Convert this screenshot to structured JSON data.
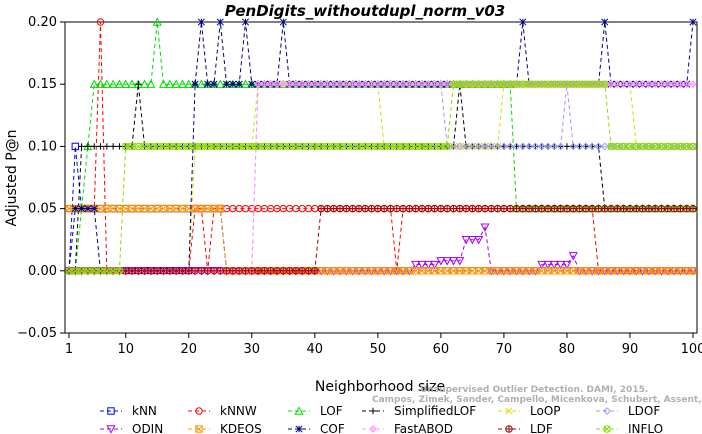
{
  "chart_data": {
    "type": "line",
    "title": "PenDigits_withoutdupl_norm_v03",
    "xlabel": "Neighborhood size",
    "ylabel": "Adjusted P@n",
    "xlim": [
      1,
      100
    ],
    "ylim": [
      -0.05,
      0.2
    ],
    "xticks": [
      "1",
      "10",
      "20",
      "30",
      "40",
      "50",
      "60",
      "70",
      "80",
      "90",
      "100"
    ],
    "yticks": [
      "−0.05",
      "0.00",
      "0.05",
      "0.10",
      "0.15",
      "0.20"
    ],
    "grid": false,
    "legend_position": "bottom",
    "watermark": "Campos, Zimek, Sander, Campello, Micenkova, Schubert, Assent, Houle",
    "watermark_line1": "Unsupervised Outlier Detection. DAMI, 2015.",
    "series": [
      {
        "name": "kNN",
        "color": "#0000ff",
        "marker": "square",
        "points": [
          [
            1,
            0
          ],
          [
            2,
            0.1
          ],
          [
            3,
            0.05
          ],
          [
            10,
            0.05
          ],
          [
            25,
            0.05
          ],
          [
            26,
            0
          ],
          [
            100,
            0
          ]
        ]
      },
      {
        "name": "kNNW",
        "color": "#ff0000",
        "marker": "circle",
        "points": [
          [
            1,
            0.05
          ],
          [
            5,
            0.05
          ],
          [
            6,
            0.2
          ],
          [
            7,
            0
          ],
          [
            20,
            0
          ],
          [
            21,
            0.05
          ],
          [
            23,
            0
          ],
          [
            24,
            0.05
          ],
          [
            52,
            0.05
          ],
          [
            53,
            0
          ],
          [
            54,
            0.05
          ],
          [
            84,
            0.05
          ],
          [
            85,
            0
          ],
          [
            100,
            0
          ]
        ]
      },
      {
        "name": "LOF",
        "color": "#00dd00",
        "marker": "triangle-up",
        "points": [
          [
            1,
            0
          ],
          [
            2,
            0
          ],
          [
            3,
            0.05
          ],
          [
            4,
            0.1
          ],
          [
            5,
            0.15
          ],
          [
            14,
            0.15
          ],
          [
            15,
            0.2
          ],
          [
            16,
            0.15
          ],
          [
            70,
            0.15
          ],
          [
            72,
            0.05
          ],
          [
            100,
            0.05
          ]
        ]
      },
      {
        "name": "SimplifiedLOF",
        "color": "#000000",
        "marker": "plus",
        "points": [
          [
            1,
            0
          ],
          [
            3,
            0.1
          ],
          [
            10,
            0.1
          ],
          [
            12,
            0.15
          ],
          [
            13,
            0.1
          ],
          [
            40,
            0.1
          ],
          [
            60,
            0.1
          ],
          [
            63,
            0.15
          ],
          [
            64,
            0.1
          ],
          [
            85,
            0.1
          ],
          [
            86,
            0.05
          ],
          [
            100,
            0.05
          ]
        ]
      },
      {
        "name": "LoOP",
        "color": "#dddd00",
        "marker": "x",
        "points": [
          [
            1,
            0
          ],
          [
            20,
            0
          ],
          [
            21,
            0.1
          ],
          [
            30,
            0.1
          ],
          [
            31,
            0.15
          ],
          [
            50,
            0.15
          ],
          [
            51,
            0.1
          ],
          [
            70,
            0.15
          ],
          [
            90,
            0.15
          ],
          [
            91,
            0.1
          ],
          [
            100,
            0.1
          ]
        ]
      },
      {
        "name": "LDOF",
        "color": "#9999ff",
        "marker": "diamond",
        "points": [
          [
            1,
            0
          ],
          [
            30,
            0
          ],
          [
            31,
            0.15
          ],
          [
            60,
            0.15
          ],
          [
            61,
            0.1
          ],
          [
            80,
            0.15
          ],
          [
            81,
            0.1
          ],
          [
            100,
            0.1
          ]
        ]
      },
      {
        "name": "ODIN",
        "color": "#a000ff",
        "marker": "triangle-down",
        "points": [
          [
            1,
            0
          ],
          [
            55,
            0
          ],
          [
            56,
            0.005
          ],
          [
            60,
            0.008
          ],
          [
            64,
            0.025
          ],
          [
            67,
            0.035
          ],
          [
            68,
            0
          ],
          [
            75,
            0
          ],
          [
            76,
            0.005
          ],
          [
            81,
            0.012
          ],
          [
            82,
            0
          ],
          [
            100,
            0
          ]
        ]
      },
      {
        "name": "KDEOS",
        "color": "#ff9900",
        "marker": "square-x",
        "points": [
          [
            1,
            0.05
          ],
          [
            25,
            0.05
          ],
          [
            26,
            0
          ],
          [
            100,
            0
          ]
        ]
      },
      {
        "name": "COF",
        "color": "#000080",
        "marker": "star",
        "points": [
          [
            1,
            0
          ],
          [
            2,
            0.05
          ],
          [
            5,
            0.05
          ],
          [
            6,
            0
          ],
          [
            20,
            0
          ],
          [
            21,
            0.15
          ],
          [
            22,
            0.2
          ],
          [
            23,
            0.15
          ],
          [
            25,
            0.2
          ],
          [
            26,
            0.15
          ],
          [
            29,
            0.2
          ],
          [
            30,
            0.15
          ],
          [
            35,
            0.2
          ],
          [
            36,
            0.15
          ],
          [
            72,
            0.15
          ],
          [
            73,
            0.2
          ],
          [
            74,
            0.15
          ],
          [
            85,
            0.15
          ],
          [
            86,
            0.2
          ],
          [
            87,
            0.15
          ],
          [
            98,
            0.15
          ],
          [
            100,
            0.2
          ]
        ]
      },
      {
        "name": "FastABOD",
        "color": "#ff99ff",
        "marker": "diamond-plus",
        "points": [
          [
            1,
            0
          ],
          [
            30,
            0
          ],
          [
            31,
            0.15
          ],
          [
            100,
            0.15
          ]
        ]
      },
      {
        "name": "LDF",
        "color": "#aa0000",
        "marker": "circle-plus",
        "points": [
          [
            1,
            0
          ],
          [
            40,
            0
          ],
          [
            41,
            0.05
          ],
          [
            100,
            0.05
          ]
        ]
      },
      {
        "name": "INFLO",
        "color": "#88dd00",
        "marker": "hex",
        "points": [
          [
            1,
            0
          ],
          [
            10,
            0.1
          ],
          [
            60,
            0.1
          ],
          [
            62,
            0.15
          ],
          [
            86,
            0.15
          ],
          [
            87,
            0.1
          ],
          [
            100,
            0.1
          ]
        ]
      }
    ]
  }
}
